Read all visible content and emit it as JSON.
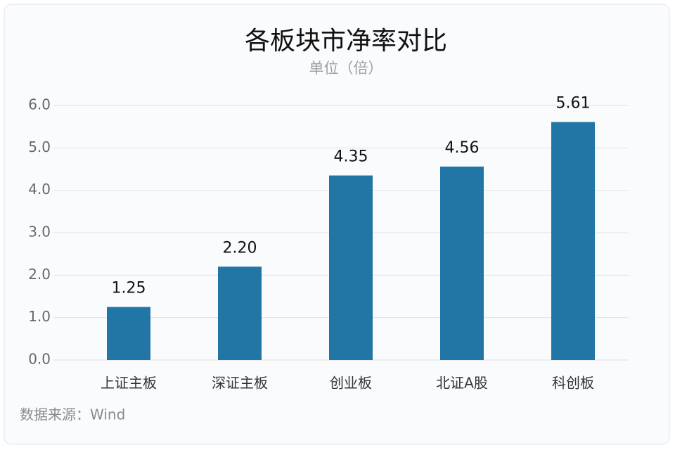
{
  "chart_data": {
    "type": "bar",
    "title": "各板块市净率对比",
    "subtitle": "单位（倍）",
    "categories": [
      "上证主板",
      "深证主板",
      "创业板",
      "北证A股",
      "科创板"
    ],
    "values": [
      1.25,
      2.2,
      4.35,
      4.56,
      5.61
    ],
    "value_labels": [
      "1.25",
      "2.20",
      "4.35",
      "4.56",
      "5.61"
    ],
    "color": "#2176a5",
    "ylim": [
      0,
      6
    ],
    "yticks": [
      {
        "value": 0,
        "label": "0.0"
      },
      {
        "value": 1,
        "label": "1.0"
      },
      {
        "value": 2,
        "label": "2.0"
      },
      {
        "value": 3,
        "label": "3.0"
      },
      {
        "value": 4,
        "label": "4.0"
      },
      {
        "value": 5,
        "label": "5.0"
      },
      {
        "value": 6,
        "label": "6.0"
      }
    ],
    "grid": true,
    "source": "数据来源：Wind"
  }
}
